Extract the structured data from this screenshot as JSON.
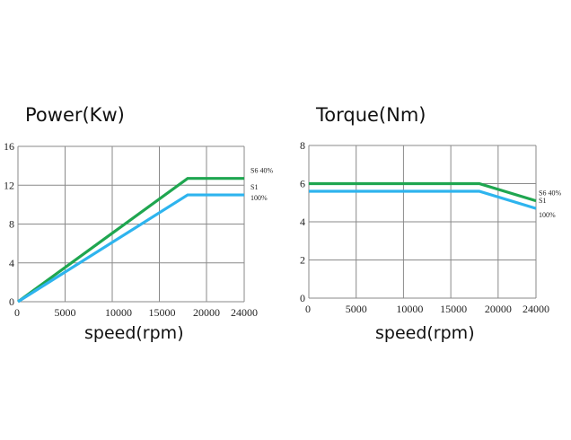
{
  "chart_data": [
    {
      "type": "line",
      "title": "Power(Kw)",
      "xlabel": "speed(rpm)",
      "ylabel": "",
      "xlim": [
        0,
        24000
      ],
      "ylim": [
        0,
        16
      ],
      "x_ticks": [
        "0",
        "5000",
        "10000",
        "15000",
        "20000",
        "24000"
      ],
      "x_tick_values": [
        0,
        5000,
        10000,
        15000,
        20000,
        24000
      ],
      "y_ticks": [
        "0",
        "4",
        "8",
        "12",
        "16"
      ],
      "y_tick_values": [
        0,
        4,
        8,
        12,
        16
      ],
      "grid": true,
      "series": [
        {
          "name": "S6 40%",
          "name_line2": "",
          "color": "#1fa650",
          "x": [
            0,
            18000,
            24000
          ],
          "y": [
            0,
            12.7,
            12.7
          ]
        },
        {
          "name": "S1",
          "name_line2": "100%",
          "color": "#2eb4ee",
          "x": [
            0,
            18000,
            24000
          ],
          "y": [
            0,
            11,
            11
          ]
        }
      ]
    },
    {
      "type": "line",
      "title": "Torque(Nm)",
      "xlabel": "speed(rpm)",
      "ylabel": "",
      "xlim": [
        0,
        24000
      ],
      "ylim": [
        0,
        8
      ],
      "x_ticks": [
        "0",
        "5000",
        "10000",
        "15000",
        "20000",
        "24000"
      ],
      "x_tick_values": [
        0,
        5000,
        10000,
        15000,
        20000,
        24000
      ],
      "y_ticks": [
        "0",
        "2",
        "4",
        "6",
        "8"
      ],
      "y_tick_values": [
        0,
        2,
        4,
        6,
        8
      ],
      "grid": true,
      "series": [
        {
          "name": "S6 40%",
          "name_line2": "",
          "color": "#1fa650",
          "x": [
            0,
            18000,
            24000
          ],
          "y": [
            6,
            6,
            5.1
          ]
        },
        {
          "name": "S1",
          "name_line2": "100%",
          "color": "#2eb4ee",
          "x": [
            0,
            18000,
            24000
          ],
          "y": [
            5.6,
            5.6,
            4.7
          ]
        }
      ]
    }
  ]
}
